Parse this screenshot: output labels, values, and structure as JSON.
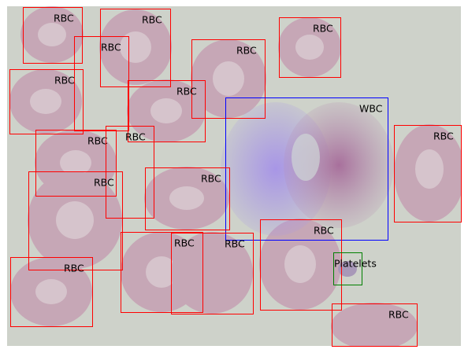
{
  "annotations": [
    {
      "label": "RBC"
    },
    {
      "label": "RBC"
    },
    {
      "label": "RBC"
    },
    {
      "label": "RBC"
    },
    {
      "label": "RBC"
    },
    {
      "label": "RBC"
    },
    {
      "label": "RBC"
    },
    {
      "label": "WBC"
    },
    {
      "label": "RBC"
    },
    {
      "label": "RBC"
    },
    {
      "label": "RBC"
    },
    {
      "label": "RBC"
    },
    {
      "label": "RBC"
    },
    {
      "label": "RBC"
    },
    {
      "label": "RBC"
    },
    {
      "label": "RBC"
    },
    {
      "label": "Platelets"
    },
    {
      "label": "RBC"
    },
    {
      "label": "RBC"
    }
  ]
}
